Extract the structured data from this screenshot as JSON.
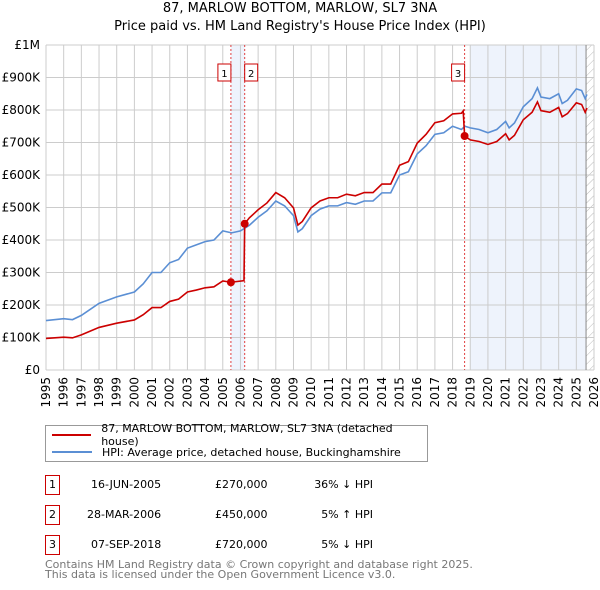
{
  "chart_data": {
    "type": "line",
    "title": "87, MARLOW BOTTOM, MARLOW, SL7 3NA",
    "subtitle": "Price paid vs. HM Land Registry's House Price Index (HPI)",
    "xlim": [
      1995,
      2026
    ],
    "ylim": [
      0,
      1000000
    ],
    "y_ticks": [
      {
        "v": 0,
        "label": "£0"
      },
      {
        "v": 100000,
        "label": "£100K"
      },
      {
        "v": 200000,
        "label": "£200K"
      },
      {
        "v": 300000,
        "label": "£300K"
      },
      {
        "v": 400000,
        "label": "£400K"
      },
      {
        "v": 500000,
        "label": "£500K"
      },
      {
        "v": 600000,
        "label": "£600K"
      },
      {
        "v": 700000,
        "label": "£700K"
      },
      {
        "v": 800000,
        "label": "£800K"
      },
      {
        "v": 900000,
        "label": "£900K"
      },
      {
        "v": 1000000,
        "label": "£1M"
      }
    ],
    "x_ticks": [
      "1995",
      "1996",
      "1997",
      "1998",
      "1999",
      "2000",
      "2001",
      "2002",
      "2003",
      "2004",
      "2005",
      "2006",
      "2007",
      "2008",
      "2009",
      "2010",
      "2011",
      "2012",
      "2013",
      "2014",
      "2015",
      "2016",
      "2017",
      "2018",
      "2019",
      "2020",
      "2021",
      "2022",
      "2023",
      "2024",
      "2025",
      "2026"
    ],
    "grid": true,
    "series": [
      {
        "name": "87, MARLOW BOTTOM, MARLOW, SL7 3NA (detached house)",
        "color": "#cc0000",
        "x": [
          1995,
          1996,
          1996.5,
          1997,
          1998,
          1999,
          2000,
          2000.5,
          2001,
          2001.5,
          2002,
          2002.5,
          2003,
          2003.5,
          2004,
          2004.5,
          2005,
          2005.46,
          2006.2,
          2006.24,
          2006.5,
          2007,
          2007.5,
          2008,
          2008.5,
          2009,
          2009.25,
          2009.5,
          2010,
          2010.5,
          2011,
          2011.5,
          2012,
          2012.5,
          2013,
          2013.5,
          2014,
          2014.5,
          2015,
          2015.5,
          2016,
          2016.5,
          2017,
          2017.5,
          2018,
          2018.5,
          2018.6,
          2018.68,
          2019,
          2019.5,
          2020,
          2020.5,
          2021,
          2021.2,
          2021.5,
          2022,
          2022.5,
          2022.8,
          2023,
          2023.5,
          2024,
          2024.2,
          2024.5,
          2025,
          2025.3,
          2025.5,
          2025.6
        ],
        "y": [
          97,
          101,
          99,
          108,
          131,
          144,
          154,
          170,
          192,
          192,
          211,
          218,
          240,
          246,
          253,
          256,
          274,
          270,
          275,
          450,
          468,
          493,
          514,
          546,
          530,
          499,
          446,
          457,
          499,
          520,
          530,
          530,
          541,
          536,
          546,
          546,
          572,
          572,
          630,
          641,
          698,
          725,
          761,
          767,
          788,
          790,
          797,
          720,
          708,
          703,
          694,
          703,
          727,
          708,
          722,
          770,
          793,
          825,
          798,
          793,
          808,
          779,
          789,
          822,
          817,
          793,
          806
        ]
      },
      {
        "name": "HPI: Average price, detached house, Buckinghamshire",
        "color": "#5b8fd4",
        "x": [
          1995,
          1996,
          1996.5,
          1997,
          1998,
          1999,
          2000,
          2000.5,
          2001,
          2001.5,
          2002,
          2002.5,
          2003,
          2003.5,
          2004,
          2004.5,
          2005,
          2005.5,
          2006,
          2006.5,
          2007,
          2007.5,
          2008,
          2008.5,
          2009,
          2009.25,
          2009.5,
          2010,
          2010.5,
          2011,
          2011.5,
          2012,
          2012.5,
          2013,
          2013.5,
          2014,
          2014.5,
          2015,
          2015.5,
          2016,
          2016.5,
          2017,
          2017.5,
          2018,
          2018.5,
          2018.7,
          2019,
          2019.5,
          2020,
          2020.5,
          2021,
          2021.2,
          2021.5,
          2022,
          2022.5,
          2022.8,
          2023,
          2023.5,
          2024,
          2024.2,
          2024.5,
          2025,
          2025.3,
          2025.5,
          2025.6
        ],
        "y": [
          152,
          158,
          155,
          168,
          205,
          225,
          240,
          265,
          300,
          300,
          330,
          340,
          375,
          385,
          395,
          400,
          428,
          422,
          428,
          445,
          470,
          490,
          520,
          505,
          475,
          425,
          435,
          475,
          495,
          505,
          505,
          515,
          510,
          520,
          520,
          545,
          545,
          600,
          610,
          665,
          690,
          725,
          730,
          750,
          740,
          750,
          745,
          740,
          730,
          740,
          765,
          745,
          760,
          810,
          835,
          868,
          840,
          835,
          850,
          820,
          830,
          865,
          860,
          835,
          848
        ]
      }
    ],
    "y_unit": "thousands GBP",
    "sales": [
      {
        "n": "1",
        "x": 2005.46,
        "y": 270,
        "date": "16-JUN-2005",
        "price": "£270,000",
        "hpi": "36% ↓ HPI"
      },
      {
        "n": "2",
        "x": 2006.24,
        "y": 450,
        "date": "28-MAR-2006",
        "price": "£450,000",
        "hpi": "5% ↑ HPI"
      },
      {
        "n": "3",
        "x": 2018.68,
        "y": 720,
        "date": "07-SEP-2018",
        "price": "£720,000",
        "hpi": "5% ↓ HPI"
      }
    ],
    "legend_placement": "below"
  },
  "footer": {
    "line1": "Contains HM Land Registry data © Crown copyright and database right 2025.",
    "line2": "This data is licensed under the Open Government Licence v3.0."
  }
}
